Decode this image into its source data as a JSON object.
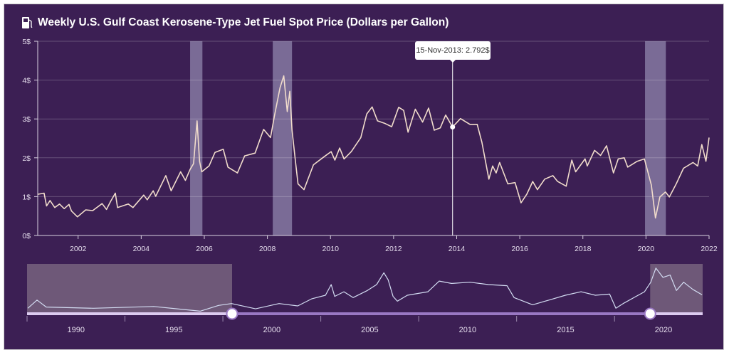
{
  "title": "Weekly U.S. Gulf Coast Kerosene-Type Jet Fuel Spot Price (Dollars per Gallon)",
  "title_icon": "fuel-pump-icon",
  "tooltip": {
    "text": "15-Nov-2013: 2.792$",
    "x": 2013.87,
    "y": 2.792
  },
  "colors": {
    "background": "#3c1f54",
    "line": "#f1dccb",
    "band": "#7a6b96",
    "navigator_line": "#d3dcf2",
    "navigator_unselected": "#6e5878",
    "slider_selected": "#9a78c4",
    "slider_unselected": "#dccbf0"
  },
  "chart_data": [
    {
      "type": "line",
      "title": "Weekly U.S. Gulf Coast Kerosene-Type Jet Fuel Spot Price (Dollars per Gallon)",
      "xlim": [
        2000.72,
        2022.0
      ],
      "ylim": [
        0,
        5
      ],
      "grid": true,
      "y_ticks": [
        {
          "value": 0,
          "label": "0$"
        },
        {
          "value": 1,
          "label": "1$"
        },
        {
          "value": 2,
          "label": "2$"
        },
        {
          "value": 3,
          "label": "3$"
        },
        {
          "value": 4,
          "label": "4$"
        },
        {
          "value": 5,
          "label": "5$"
        }
      ],
      "x_ticks": [
        {
          "value": 2002,
          "label": "2002"
        },
        {
          "value": 2004,
          "label": "2004"
        },
        {
          "value": 2006,
          "label": "2006"
        },
        {
          "value": 2008,
          "label": "2008"
        },
        {
          "value": 2010,
          "label": "2010"
        },
        {
          "value": 2012,
          "label": "2012"
        },
        {
          "value": 2014,
          "label": "2014"
        },
        {
          "value": 2016,
          "label": "2016"
        },
        {
          "value": 2018,
          "label": "2018"
        },
        {
          "value": 2020,
          "label": "2020"
        },
        {
          "value": 2022,
          "label": "2022"
        }
      ],
      "shaded_ranges": [
        [
          2005.55,
          2005.94
        ],
        [
          2008.17,
          2008.78
        ],
        [
          2019.97,
          2020.63
        ]
      ],
      "x": [
        2000.72,
        2000.92,
        2001.0,
        2001.11,
        2001.26,
        2001.41,
        2001.56,
        2001.71,
        2001.79,
        2001.98,
        2002.24,
        2002.46,
        2002.76,
        2002.9,
        2003.03,
        2003.18,
        2003.25,
        2003.59,
        2003.74,
        2004.08,
        2004.19,
        2004.38,
        2004.46,
        2004.78,
        2004.95,
        2005.25,
        2005.4,
        2005.55,
        2005.66,
        2005.77,
        2005.85,
        2005.92,
        2006.15,
        2006.34,
        2006.6,
        2006.75,
        2007.05,
        2007.28,
        2007.61,
        2007.88,
        2008.1,
        2008.22,
        2008.4,
        2008.52,
        2008.63,
        2008.71,
        2008.78,
        2008.89,
        2008.97,
        2009.16,
        2009.46,
        2009.8,
        2010.02,
        2010.14,
        2010.29,
        2010.43,
        2010.66,
        2010.96,
        2011.15,
        2011.32,
        2011.49,
        2011.71,
        2011.94,
        2012.16,
        2012.32,
        2012.46,
        2012.69,
        2012.92,
        2013.11,
        2013.29,
        2013.48,
        2013.65,
        2013.87,
        2014.12,
        2014.42,
        2014.65,
        2014.8,
        2015.02,
        2015.14,
        2015.25,
        2015.36,
        2015.62,
        2015.85,
        2016.04,
        2016.22,
        2016.41,
        2016.56,
        2016.79,
        2017.05,
        2017.2,
        2017.47,
        2017.65,
        2017.77,
        2018.07,
        2018.14,
        2018.37,
        2018.56,
        2018.75,
        2018.97,
        2019.12,
        2019.31,
        2019.42,
        2019.72,
        2019.95,
        2020.06,
        2020.17,
        2020.3,
        2020.44,
        2020.62,
        2020.74,
        2020.96,
        2021.19,
        2021.49,
        2021.64,
        2021.77,
        2021.9,
        2022.0
      ],
      "y": [
        1.06,
        1.09,
        0.76,
        0.9,
        0.72,
        0.81,
        0.69,
        0.8,
        0.63,
        0.48,
        0.66,
        0.64,
        0.82,
        0.67,
        0.88,
        1.09,
        0.72,
        0.81,
        0.72,
        1.04,
        0.92,
        1.15,
        1.01,
        1.54,
        1.15,
        1.64,
        1.42,
        1.7,
        1.85,
        2.95,
        1.91,
        1.64,
        1.79,
        2.14,
        2.22,
        1.76,
        1.61,
        2.05,
        2.12,
        2.73,
        2.52,
        3.07,
        3.8,
        4.11,
        3.19,
        3.71,
        2.71,
        1.91,
        1.33,
        1.18,
        1.82,
        2.03,
        2.16,
        1.94,
        2.25,
        1.97,
        2.16,
        2.52,
        3.13,
        3.31,
        2.95,
        2.89,
        2.8,
        3.3,
        3.22,
        2.66,
        3.25,
        2.92,
        3.28,
        2.71,
        2.77,
        3.1,
        2.792,
        3.01,
        2.86,
        2.86,
        2.4,
        1.45,
        1.79,
        1.61,
        1.88,
        1.33,
        1.36,
        0.84,
        1.06,
        1.39,
        1.18,
        1.45,
        1.54,
        1.39,
        1.27,
        1.94,
        1.64,
        1.97,
        1.79,
        2.19,
        2.06,
        2.31,
        1.61,
        1.97,
        2.0,
        1.76,
        1.91,
        1.97,
        1.64,
        1.3,
        0.45,
        0.99,
        1.12,
        0.99,
        1.33,
        1.73,
        1.88,
        1.79,
        2.34,
        1.91,
        2.52
      ]
    },
    {
      "type": "line",
      "role": "range-navigator",
      "xlim": [
        1987.5,
        2022.0
      ],
      "x_ticks": [
        {
          "value": 1990,
          "label": "1990"
        },
        {
          "value": 1995,
          "label": "1995"
        },
        {
          "value": 2000,
          "label": "2000"
        },
        {
          "value": 2005,
          "label": "2005"
        },
        {
          "value": 2010,
          "label": "2010"
        },
        {
          "value": 2015,
          "label": "2015"
        },
        {
          "value": 2020,
          "label": "2020"
        }
      ],
      "selected_range": [
        1997.97,
        2019.32
      ],
      "x": [
        1987.54,
        1988.01,
        1988.48,
        1990.88,
        1993.97,
        1996.34,
        1997.28,
        1997.94,
        1999.17,
        2000.37,
        2001.32,
        2002.05,
        2002.74,
        2003.03,
        2003.21,
        2003.68,
        2004.15,
        2004.88,
        2005.35,
        2005.72,
        2005.94,
        2006.19,
        2006.41,
        2006.92,
        2007.97,
        2008.55,
        2009.17,
        2010.12,
        2011.06,
        2012.01,
        2012.37,
        2013.32,
        2014.15,
        2014.99,
        2015.79,
        2016.52,
        2017.25,
        2017.57,
        2017.94,
        2019.03,
        2019.35,
        2019.61,
        2019.97,
        2020.34,
        2020.66,
        2021.03,
        2021.5,
        2021.97
      ],
      "y": [
        0.78,
        1.55,
        0.89,
        0.78,
        0.95,
        0.51,
        1.05,
        1.22,
        0.73,
        1.22,
        1.0,
        1.67,
        2.0,
        3.0,
        1.89,
        2.33,
        1.78,
        2.45,
        3.0,
        4.11,
        3.45,
        1.89,
        1.45,
        2.0,
        2.33,
        3.33,
        3.11,
        3.22,
        3.0,
        2.89,
        1.78,
        1.11,
        1.55,
        2.0,
        2.33,
        2.0,
        2.11,
        0.78,
        1.22,
        2.33,
        3.22,
        4.55,
        3.67,
        3.89,
        2.45,
        3.22,
        2.55,
        2.04
      ]
    }
  ]
}
